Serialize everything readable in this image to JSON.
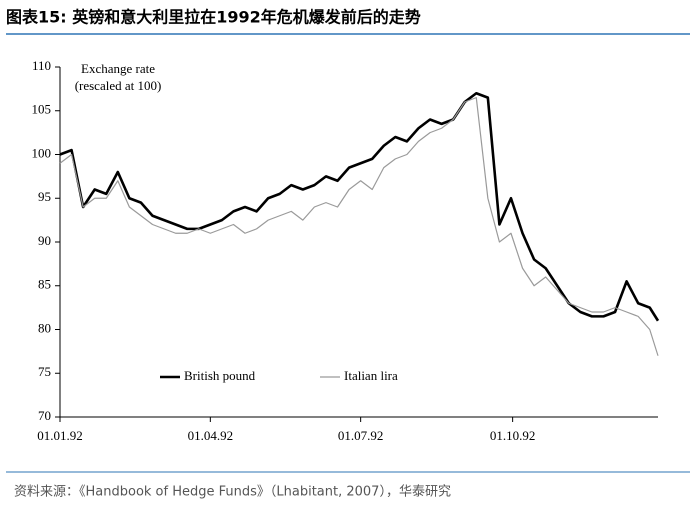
{
  "chart_data": {
    "type": "line",
    "title": "图表15:  英镑和意大利里拉在1992年危机爆发前后的走势",
    "y_label": [
      "Exchange rate",
      "(rescaled at 100)"
    ],
    "source": "资料来源：《Handbook of Hedge Funds》（Lhabitant, 2007），华泰研究",
    "x": [
      "1992-01-01",
      "1992-01-08",
      "1992-01-15",
      "1992-01-22",
      "1992-01-29",
      "1992-02-05",
      "1992-02-12",
      "1992-02-19",
      "1992-02-26",
      "1992-03-04",
      "1992-03-11",
      "1992-03-18",
      "1992-03-25",
      "1992-04-01",
      "1992-04-08",
      "1992-04-15",
      "1992-04-22",
      "1992-04-29",
      "1992-05-06",
      "1992-05-13",
      "1992-05-20",
      "1992-05-27",
      "1992-06-03",
      "1992-06-10",
      "1992-06-17",
      "1992-06-24",
      "1992-07-01",
      "1992-07-08",
      "1992-07-15",
      "1992-07-22",
      "1992-07-29",
      "1992-08-05",
      "1992-08-12",
      "1992-08-19",
      "1992-08-26",
      "1992-09-02",
      "1992-09-09",
      "1992-09-16",
      "1992-09-23",
      "1992-09-30",
      "1992-10-07",
      "1992-10-14",
      "1992-10-21",
      "1992-10-28",
      "1992-11-04",
      "1992-11-11",
      "1992-11-18",
      "1992-11-25",
      "1992-12-02",
      "1992-12-09",
      "1992-12-16",
      "1992-12-23",
      "1992-12-28"
    ],
    "series": [
      {
        "name": "British pound",
        "color": "#000000",
        "width": 2.6,
        "values": [
          100,
          100.5,
          94,
          96,
          95.5,
          98,
          95,
          94.5,
          93,
          92.5,
          92,
          91.5,
          91.5,
          92,
          92.5,
          93.5,
          94,
          93.5,
          95,
          95.5,
          96.5,
          96,
          96.5,
          97.5,
          97,
          98.5,
          99,
          99.5,
          101,
          102,
          101.5,
          103,
          104,
          103.5,
          104,
          106,
          107,
          106.5,
          92,
          95,
          91,
          88,
          87,
          85,
          83,
          82,
          81.5,
          81.5,
          82,
          85.5,
          83,
          82.5,
          81
        ]
      },
      {
        "name": "Italian lira",
        "color": "#9a9a9a",
        "width": 1.2,
        "values": [
          99,
          100,
          94,
          95,
          95,
          97,
          94,
          93,
          92,
          91.5,
          91,
          91,
          91.5,
          91,
          91.5,
          92,
          91,
          91.5,
          92.5,
          93,
          93.5,
          92.5,
          94,
          94.5,
          94,
          96,
          97,
          96,
          98.5,
          99.5,
          100,
          101.5,
          102.5,
          103,
          104,
          106,
          106.5,
          95,
          90,
          91,
          87,
          85,
          86,
          84.5,
          83,
          82.5,
          82,
          82,
          82.5,
          82,
          81.5,
          80,
          77
        ]
      }
    ],
    "xlim": [
      "1992-01-01",
      "1992-12-28"
    ],
    "xticks": [
      {
        "value": "1992-01-01",
        "label": "01.01.92"
      },
      {
        "value": "1992-04-01",
        "label": "01.04.92"
      },
      {
        "value": "1992-07-01",
        "label": "01.07.92"
      },
      {
        "value": "1992-10-01",
        "label": "01.10.92"
      }
    ],
    "ylim": [
      70,
      110
    ],
    "yticks": [
      70,
      75,
      80,
      85,
      90,
      95,
      100,
      105,
      110
    ],
    "grid": false,
    "legend": "lower left"
  }
}
